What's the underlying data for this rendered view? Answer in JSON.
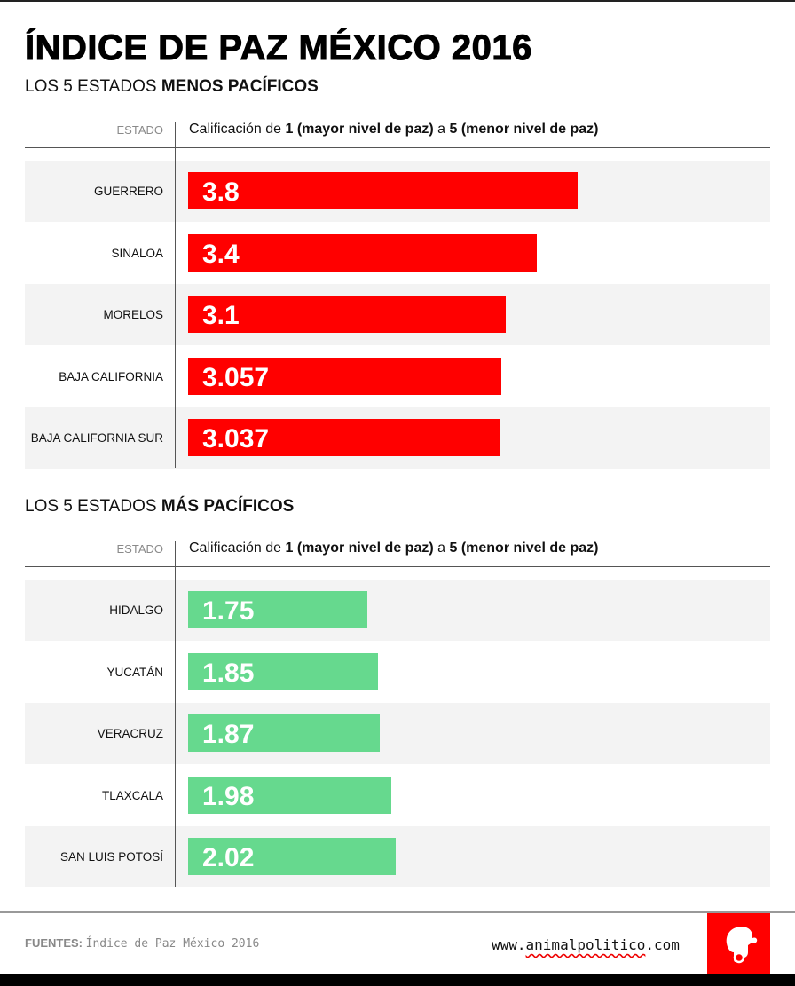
{
  "title": "ÍNDICE DE PAZ MÉXICO 2016",
  "sections": [
    {
      "title_prefix": "LOS 5 ESTADOS ",
      "title_bold": "MENOS PACÍFICOS",
      "col_estado": "ESTADO",
      "scale": {
        "pre": "Calificación de ",
        "b1": "1 (mayor nivel de paz)",
        "mid": " a ",
        "b2": "5 (menor nivel de paz)"
      },
      "bar_color": "#ff0000"
    },
    {
      "title_prefix": "LOS 5 ESTADOS ",
      "title_bold": "MÁS PACÍFICOS",
      "col_estado": "ESTADO",
      "scale": {
        "pre": "Calificación de ",
        "b1": "1 (mayor nivel de paz)",
        "mid": " a ",
        "b2": "5 (menor nivel de paz)"
      },
      "bar_color": "#66d98e"
    }
  ],
  "chart_data": [
    {
      "type": "bar",
      "orientation": "horizontal",
      "categories": [
        "GUERRERO",
        "SINALOA",
        "MORELOS",
        "BAJA CALIFORNIA",
        "BAJA CALIFORNIA SUR"
      ],
      "values": [
        3.8,
        3.4,
        3.1,
        3.057,
        3.037
      ],
      "value_labels": [
        "3.8",
        "3.4",
        "3.1",
        "3.057",
        "3.037"
      ],
      "color": "#ff0000"
    },
    {
      "type": "bar",
      "orientation": "horizontal",
      "categories": [
        "HIDALGO",
        "YUCATÁN",
        "VERACRUZ",
        "TLAXCALA",
        "SAN LUIS POTOSÍ"
      ],
      "values": [
        1.75,
        1.85,
        1.87,
        1.98,
        2.02
      ],
      "value_labels": [
        "1.75",
        "1.85",
        "1.87",
        "1.98",
        "2.02"
      ],
      "color": "#66d98e"
    }
  ],
  "footer": {
    "fuentes_label": "FUENTES:",
    "fuentes_text": "Índice de Paz México 2016",
    "url_prefix": "www.",
    "url_brand": "animalpolitico",
    "url_suffix": ".com"
  },
  "logo": {
    "icon": "animalpolitico-elephant-icon",
    "color": "#ff0000"
  }
}
